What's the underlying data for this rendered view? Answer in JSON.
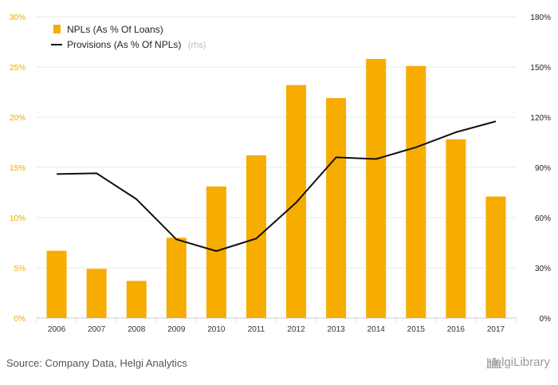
{
  "chart_data": {
    "type": "bar+line",
    "categories": [
      "2006",
      "2007",
      "2008",
      "2009",
      "2010",
      "2011",
      "2012",
      "2013",
      "2014",
      "2015",
      "2016",
      "2017"
    ],
    "series": [
      {
        "name": "NPLs (As % Of Loans)",
        "type": "bar",
        "axis": "left",
        "values": [
          6.7,
          4.9,
          3.7,
          8.0,
          13.1,
          16.2,
          23.2,
          21.9,
          25.8,
          25.1,
          17.8,
          12.1
        ]
      },
      {
        "name": "Provisions (As % Of NPLs)",
        "type": "line",
        "axis": "right",
        "values": [
          86,
          86.5,
          71,
          47,
          40,
          47.5,
          69,
          96,
          95,
          102,
          111,
          117.5
        ]
      }
    ],
    "legend_suffix": "(rhs)",
    "y_left": {
      "ticks": [
        "0%",
        "5%",
        "10%",
        "15%",
        "20%",
        "25%",
        "30%"
      ],
      "ylim": [
        0,
        30
      ]
    },
    "y_right": {
      "ticks": [
        "0%",
        "30%",
        "60%",
        "90%",
        "120%",
        "150%",
        "180%"
      ],
      "ylim": [
        0,
        180
      ]
    },
    "legend_position": "top-left",
    "grid": true,
    "colors": {
      "bar": "#f7ac00",
      "line": "#111111",
      "grid": "#e8e8e8",
      "left_ticks": "#f0a800"
    }
  },
  "footer": {
    "source": "Source: Company Data, Helgi Analytics",
    "brand": "HelgiLibrary"
  }
}
